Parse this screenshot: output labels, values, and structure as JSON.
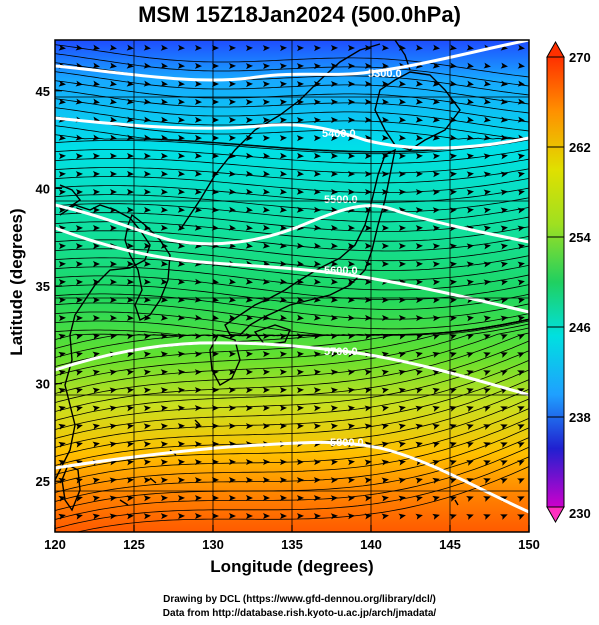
{
  "title": "MSM 15Z18Jan2024 (500.0hPa)",
  "xlabel": "Longitude (degrees)",
  "ylabel": "Latitude  (degrees)",
  "credit_line1": "Drawing by DCL (https://www.gfd-dennou.org/library/dcl/)",
  "credit_line2": "Data from http://database.rish.kyoto-u.ac.jp/arch/jmadata/",
  "map": {
    "lon_range": [
      120,
      150
    ],
    "lat_range": [
      22.4,
      47.6
    ],
    "lon_ticks": [
      "120",
      "125",
      "130",
      "135",
      "140",
      "145",
      "150"
    ],
    "lat_ticks": [
      "25",
      "30",
      "35",
      "40",
      "45"
    ],
    "contours": [
      {
        "label": "5300.0"
      },
      {
        "label": "5400.0"
      },
      {
        "label": "5500.0"
      },
      {
        "label": "5600.0"
      },
      {
        "label": "5700.0"
      },
      {
        "label": "5800.0"
      }
    ]
  },
  "colorbar": {
    "ticks": [
      "270",
      "262",
      "254",
      "246",
      "238",
      "230"
    ],
    "range": [
      230,
      270
    ],
    "colors": [
      "#cc00cc",
      "#2020d0",
      "#1fa0ff",
      "#00e0e0",
      "#20d060",
      "#a0e020",
      "#e0e000",
      "#ff9000",
      "#ff3000"
    ]
  }
}
